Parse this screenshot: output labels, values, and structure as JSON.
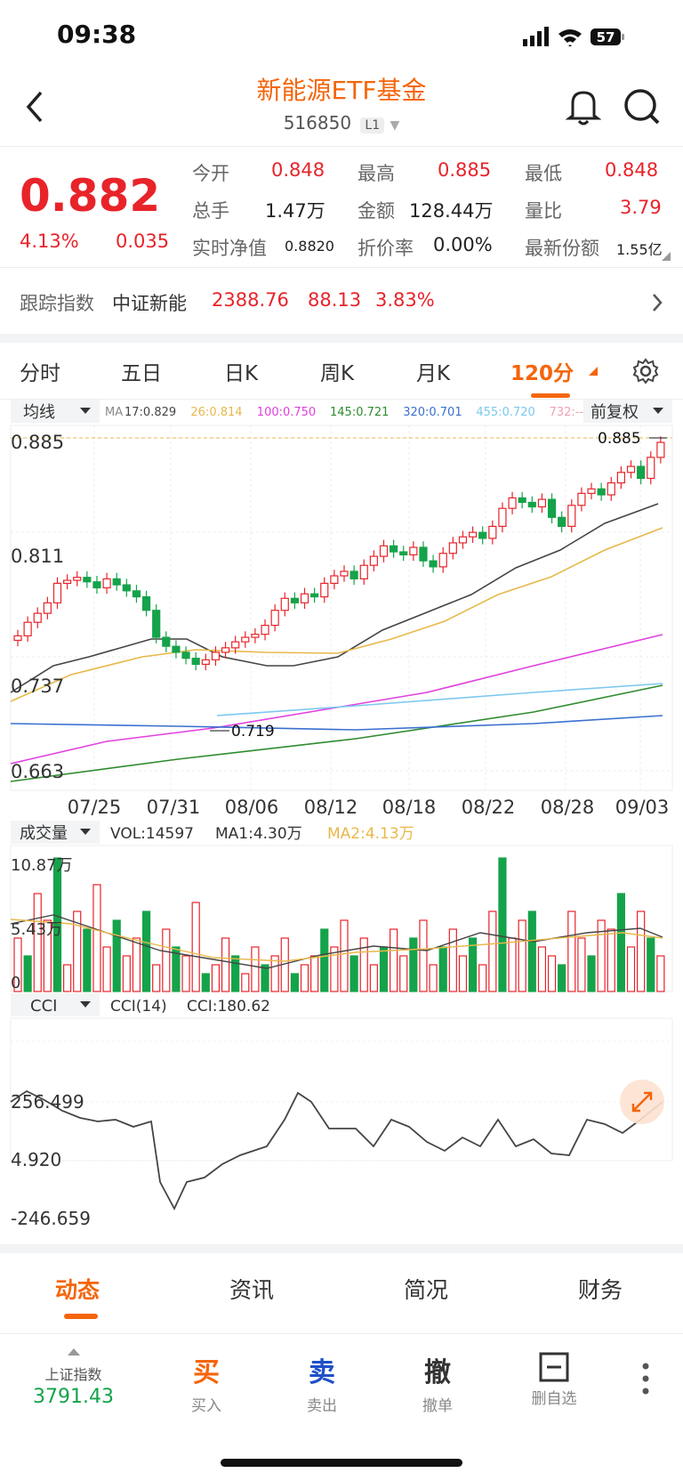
{
  "status_bar": {
    "time": "09:38",
    "battery": "57"
  },
  "header": {
    "title": "新能源ETF基金",
    "code": "516850",
    "level": "L1"
  },
  "quote": {
    "price": "0.882",
    "change_pct": "4.13%",
    "change": "0.035",
    "fields": [
      {
        "label": "今开",
        "value": "0.848"
      },
      {
        "label": "最高",
        "value": "0.885"
      },
      {
        "label": "最低",
        "value": "0.848"
      },
      {
        "label": "总手",
        "value": "1.47万"
      },
      {
        "label": "金额",
        "value": "128.44万"
      },
      {
        "label": "量比",
        "value": "3.79"
      },
      {
        "label": "实时净值",
        "value": "0.8820"
      },
      {
        "label": "折价率",
        "value": "0.00%"
      },
      {
        "label": "最新份额",
        "value": "1.55亿"
      }
    ]
  },
  "tracking": {
    "label": "跟踪指数",
    "index": "中证新能",
    "value": "2388.76",
    "change": "88.13",
    "pct": "3.83%"
  },
  "period_tabs": [
    "分时",
    "五日",
    "日K",
    "周K",
    "月K",
    "120分"
  ],
  "active_period": "120分",
  "kline": {
    "ma_selector": "均线",
    "adjust_selector": "前复权",
    "ma_prefix": "MA",
    "ma_legend": [
      {
        "label": "17:0.829",
        "color": "#444444"
      },
      {
        "label": "26:0.814",
        "color": "#e8b84a"
      },
      {
        "label": "100:0.750",
        "color": "#e040e0"
      },
      {
        "label": "145:0.721",
        "color": "#2e8b2e"
      },
      {
        "label": "320:0.701",
        "color": "#3a6fd0"
      },
      {
        "label": "455:0.720",
        "color": "#7cc8f0"
      },
      {
        "label": "732:--",
        "color": "#f0a0b0"
      }
    ],
    "y_labels": [
      "0.885",
      "0.811",
      "0.737",
      "0.663"
    ],
    "high_label": "0.885",
    "low_label": "0.719",
    "x_labels": [
      "07/25",
      "07/31",
      "08/06",
      "08/12",
      "08/18",
      "08/22",
      "08/28",
      "09/03"
    ]
  },
  "volume": {
    "selector": "成交量",
    "vol": "VOL:14597",
    "ma1": "MA1:4.30万",
    "ma2": "MA2:4.13万",
    "y_labels": [
      "10.87万",
      "5.43万",
      "0"
    ]
  },
  "cci": {
    "selector": "CCI",
    "name": "CCI(14)",
    "value": "CCI:180.62",
    "y_labels": [
      "256.499",
      "4.920",
      "-246.659"
    ]
  },
  "bottom_tabs": [
    "动态",
    "资讯",
    "简况",
    "财务"
  ],
  "active_bottom_tab": "动态",
  "toolbar": {
    "index_name": "上证指数",
    "index_value": "3791.43",
    "buttons": [
      {
        "big": "买",
        "small": "买入",
        "color": "#f5650b"
      },
      {
        "big": "卖",
        "small": "卖出",
        "color": "#2050c8"
      },
      {
        "big": "撤",
        "small": "撤单",
        "color": "#333333"
      },
      {
        "big": "删",
        "small": "删自选",
        "color": "#333333"
      }
    ]
  },
  "colors": {
    "up": "#e8232a",
    "down": "#14a34a",
    "accent": "#f5650b"
  }
}
